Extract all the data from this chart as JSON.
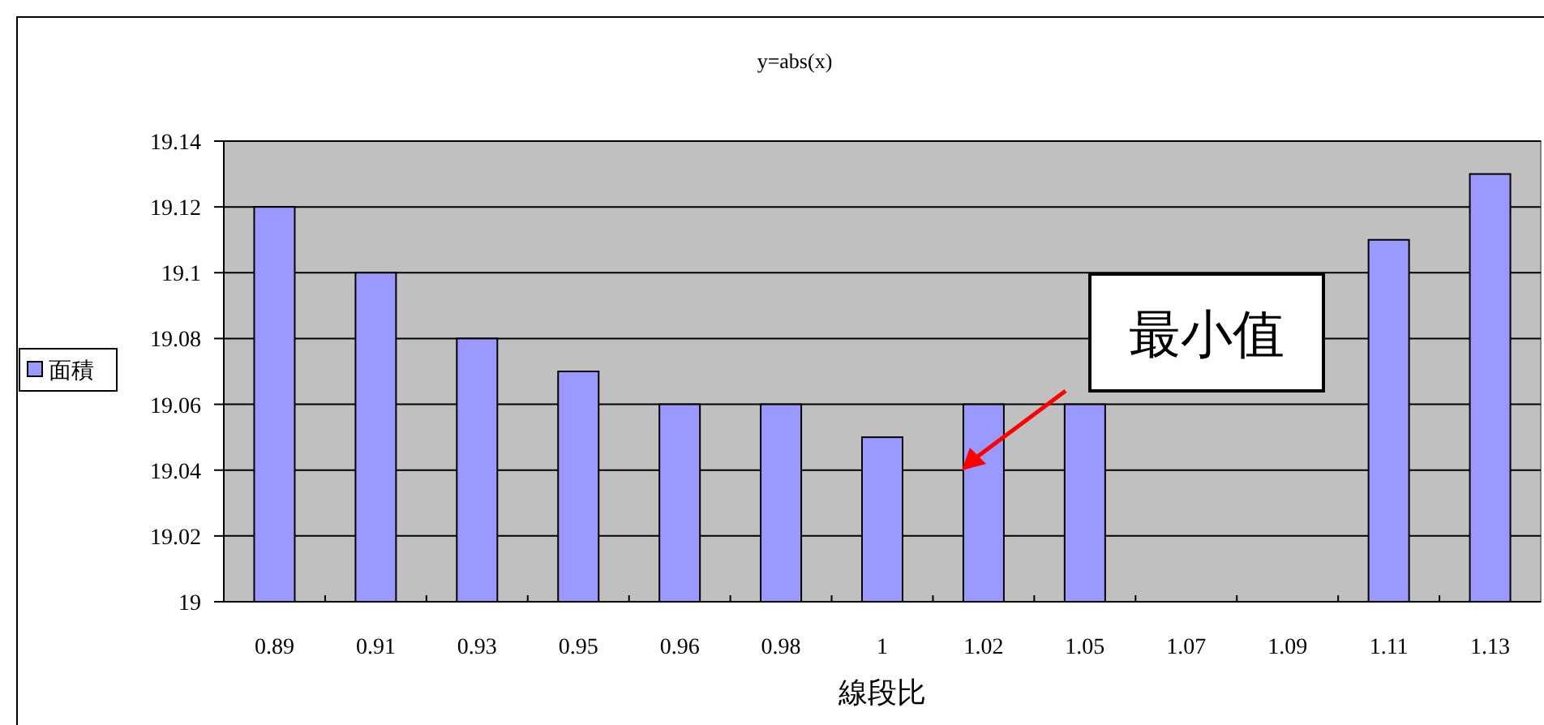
{
  "chart_data": {
    "type": "bar",
    "title": "y=abs(x)",
    "xlabel": "線段比",
    "categories": [
      "0.89",
      "0.91",
      "0.93",
      "0.95",
      "0.96",
      "0.98",
      "1",
      "1.02",
      "1.05",
      "1.07",
      "1.09",
      "1.11",
      "1.13"
    ],
    "series": [
      {
        "name": "面積",
        "color": "#9999ff",
        "values": [
          19.12,
          19.1,
          19.08,
          19.07,
          19.06,
          19.06,
          19.05,
          19.06,
          19.06,
          null,
          null,
          19.11,
          19.13
        ]
      }
    ],
    "ylim": [
      19,
      19.14
    ],
    "yticks": [
      19,
      19.02,
      19.04,
      19.06,
      19.08,
      19.1,
      19.12,
      19.14
    ],
    "grid": "y",
    "legend": "left",
    "annotations": [
      "最小值"
    ]
  }
}
